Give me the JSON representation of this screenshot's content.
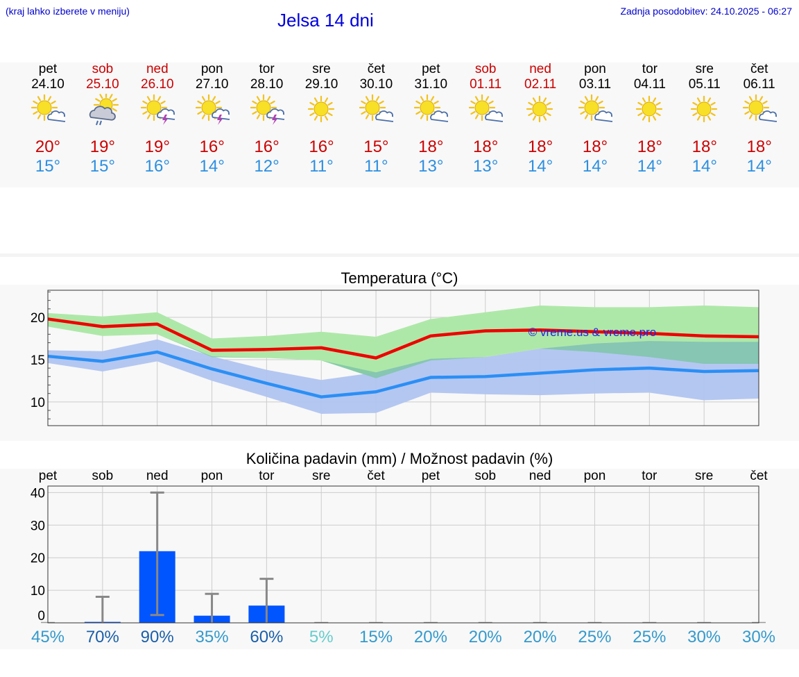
{
  "header": {
    "hint": "(kraj lahko izberete v meniju)",
    "title": "Jelsa 14 dni",
    "updated": "Zadnja posodobitev: 24.10.2025 - 06:27"
  },
  "days": [
    {
      "wd": "pet",
      "date": "24.10",
      "weekend": false,
      "icon": "sun-cloud-icon",
      "tmax": "20°",
      "tmin": "15°"
    },
    {
      "wd": "sob",
      "date": "25.10",
      "weekend": true,
      "icon": "rain-cloud-sun-icon",
      "tmax": "19°",
      "tmin": "15°"
    },
    {
      "wd": "ned",
      "date": "26.10",
      "weekend": true,
      "icon": "sun-thunder-icon",
      "tmax": "19°",
      "tmin": "16°"
    },
    {
      "wd": "pon",
      "date": "27.10",
      "weekend": false,
      "icon": "sun-thunder-icon",
      "tmax": "16°",
      "tmin": "14°"
    },
    {
      "wd": "tor",
      "date": "28.10",
      "weekend": false,
      "icon": "sun-thunder-icon",
      "tmax": "16°",
      "tmin": "12°"
    },
    {
      "wd": "sre",
      "date": "29.10",
      "weekend": false,
      "icon": "sun-icon",
      "tmax": "16°",
      "tmin": "11°"
    },
    {
      "wd": "čet",
      "date": "30.10",
      "weekend": false,
      "icon": "sun-cloud-icon",
      "tmax": "15°",
      "tmin": "11°"
    },
    {
      "wd": "pet",
      "date": "31.10",
      "weekend": false,
      "icon": "sun-cloud-icon",
      "tmax": "18°",
      "tmin": "13°"
    },
    {
      "wd": "sob",
      "date": "01.11",
      "weekend": true,
      "icon": "sun-cloud-icon",
      "tmax": "18°",
      "tmin": "13°"
    },
    {
      "wd": "ned",
      "date": "02.11",
      "weekend": true,
      "icon": "sun-icon",
      "tmax": "18°",
      "tmin": "14°"
    },
    {
      "wd": "pon",
      "date": "03.11",
      "weekend": false,
      "icon": "sun-cloud-icon",
      "tmax": "18°",
      "tmin": "14°"
    },
    {
      "wd": "tor",
      "date": "04.11",
      "weekend": false,
      "icon": "sun-icon",
      "tmax": "18°",
      "tmin": "14°"
    },
    {
      "wd": "sre",
      "date": "05.11",
      "weekend": false,
      "icon": "sun-icon",
      "tmax": "18°",
      "tmin": "14°"
    },
    {
      "wd": "čet",
      "date": "06.11",
      "weekend": false,
      "icon": "sun-cloud-icon",
      "tmax": "18°",
      "tmin": "14°"
    }
  ],
  "colors": {
    "max_line": "#ee0000",
    "min_line": "#2b8ff5",
    "max_band": "#aee8a8",
    "min_band": "#b0c4f0",
    "overlap_band": "#7fc6a8",
    "bar": "#0055ff",
    "error": "#888888",
    "watermark": "#2222dd"
  },
  "chart_data": [
    {
      "type": "line",
      "title": "Temperatura (°C)",
      "watermark": "© vreme.us & vreme.pro",
      "ylim": [
        7.2,
        23.2
      ],
      "yticks": [
        10,
        15,
        20
      ],
      "grid": true,
      "series": [
        {
          "values": [
            19.8,
            18.9,
            19.2,
            16.1,
            16.2,
            16.4,
            15.2,
            17.8,
            18.4,
            18.5,
            18.3,
            18.1,
            17.8,
            17.7
          ],
          "upper": [
            20.5,
            20.1,
            20.6,
            17.5,
            17.8,
            18.3,
            17.7,
            19.8,
            20.6,
            21.4,
            21.2,
            21.2,
            21.4,
            21.2
          ],
          "lower": [
            18.9,
            17.8,
            18.0,
            15.3,
            15.2,
            14.9,
            12.8,
            14.9,
            15.3,
            16.3,
            15.9,
            15.3,
            14.5,
            14.5
          ]
        },
        {
          "values": [
            15.4,
            14.8,
            15.9,
            13.9,
            12.2,
            10.6,
            11.2,
            12.9,
            13.0,
            13.4,
            13.8,
            14.0,
            13.6,
            13.7
          ],
          "upper": [
            16.1,
            16.0,
            17.4,
            15.4,
            13.8,
            12.6,
            13.5,
            15.1,
            15.3,
            16.3,
            16.9,
            17.2,
            17.1,
            17.1
          ],
          "lower": [
            14.6,
            13.6,
            14.8,
            12.5,
            10.6,
            8.6,
            8.7,
            11.1,
            10.9,
            10.8,
            11.0,
            11.1,
            10.2,
            10.4
          ]
        }
      ]
    },
    {
      "type": "bar",
      "title": "Količina padavin (mm) / Možnost padavin (%)",
      "categories": [
        "pet",
        "sob",
        "ned",
        "pon",
        "tor",
        "sre",
        "čet",
        "pet",
        "sob",
        "ned",
        "pon",
        "tor",
        "sre",
        "čet"
      ],
      "values": [
        0,
        0.3,
        22,
        2.2,
        5.3,
        0,
        0,
        0,
        0,
        0,
        0,
        0,
        0,
        0
      ],
      "error_high": [
        0,
        8,
        40,
        8.9,
        13.5,
        0,
        0,
        0,
        0,
        0,
        0,
        0,
        0,
        0
      ],
      "error_low": [
        0,
        0,
        2.4,
        0,
        0,
        0,
        0,
        0,
        0,
        0,
        0,
        0,
        0,
        0
      ],
      "ylim": [
        0,
        42
      ],
      "yticks": [
        0,
        10,
        20,
        30,
        40
      ],
      "grid": true,
      "probabilities": [
        "45%",
        "70%",
        "90%",
        "35%",
        "60%",
        "5%",
        "15%",
        "20%",
        "20%",
        "20%",
        "25%",
        "25%",
        "30%",
        "30%"
      ],
      "probability_colors": [
        "#3399cc",
        "#1a5fa8",
        "#1a5fa8",
        "#3399cc",
        "#1a5fa8",
        "#66cccc",
        "#3399cc",
        "#3399cc",
        "#3399cc",
        "#3399cc",
        "#3399cc",
        "#3399cc",
        "#3399cc",
        "#3399cc"
      ]
    }
  ]
}
